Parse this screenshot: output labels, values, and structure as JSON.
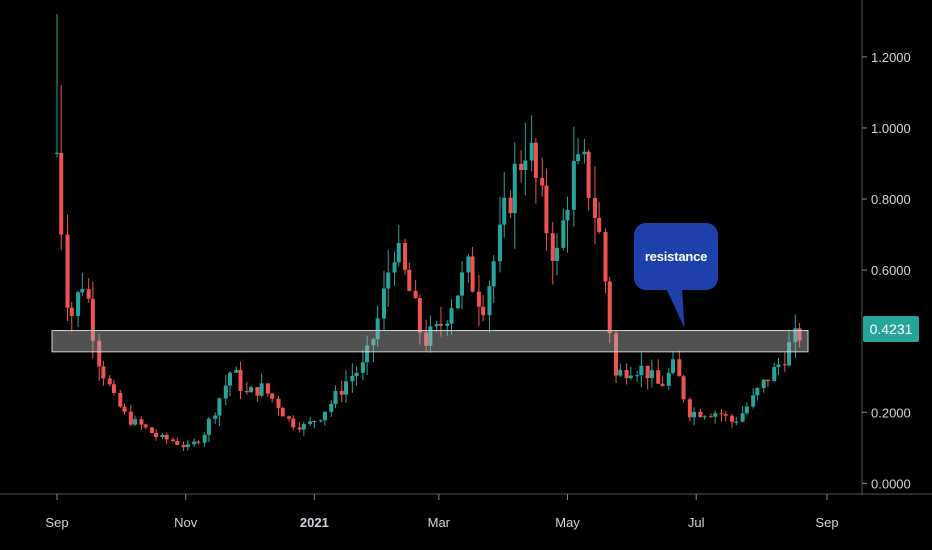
{
  "chart_data": {
    "type": "candlestick",
    "y_ticks": [
      "1.2000",
      "1.0000",
      "0.8000",
      "0.6000",
      "0.2000",
      "0.0000"
    ],
    "x_ticks": [
      "Sep",
      "Nov",
      "2021",
      "Mar",
      "May",
      "Jul",
      "Sep"
    ],
    "ylim": [
      -0.03,
      1.36
    ],
    "last_price": "0.4231",
    "grid": false,
    "up_color": "#26a69a",
    "down_color": "#ef5350",
    "resistance_zone": {
      "low": 0.37,
      "high": 0.43
    },
    "annotation": "resistance",
    "weekly_close_path": [
      [
        "2020-09-01",
        0.93
      ],
      [
        "2020-09-07",
        0.45
      ],
      [
        "2020-09-14",
        0.58
      ],
      [
        "2020-09-21",
        0.35
      ],
      [
        "2020-09-28",
        0.24
      ],
      [
        "2020-10-05",
        0.18
      ],
      [
        "2020-10-12",
        0.16
      ],
      [
        "2020-10-19",
        0.13
      ],
      [
        "2020-10-26",
        0.12
      ],
      [
        "2020-11-02",
        0.1
      ],
      [
        "2020-11-09",
        0.13
      ],
      [
        "2020-11-16",
        0.22
      ],
      [
        "2020-11-23",
        0.32
      ],
      [
        "2020-11-30",
        0.25
      ],
      [
        "2020-12-07",
        0.27
      ],
      [
        "2020-12-14",
        0.23
      ],
      [
        "2020-12-21",
        0.17
      ],
      [
        "2020-12-28",
        0.16
      ],
      [
        "2021-01-04",
        0.19
      ],
      [
        "2021-01-11",
        0.24
      ],
      [
        "2021-01-18",
        0.3
      ],
      [
        "2021-01-25",
        0.33
      ],
      [
        "2021-02-01",
        0.47
      ],
      [
        "2021-02-08",
        0.67
      ],
      [
        "2021-02-15",
        0.55
      ],
      [
        "2021-02-22",
        0.4
      ],
      [
        "2021-03-01",
        0.43
      ],
      [
        "2021-03-08",
        0.52
      ],
      [
        "2021-03-15",
        0.6
      ],
      [
        "2021-03-22",
        0.5
      ],
      [
        "2021-03-29",
        0.66
      ],
      [
        "2021-04-05",
        0.84
      ],
      [
        "2021-04-12",
        0.97
      ],
      [
        "2021-04-19",
        0.78
      ],
      [
        "2021-04-26",
        0.62
      ],
      [
        "2021-05-03",
        0.87
      ],
      [
        "2021-05-10",
        0.88
      ],
      [
        "2021-05-17",
        0.68
      ],
      [
        "2021-05-24",
        0.3
      ],
      [
        "2021-05-31",
        0.33
      ],
      [
        "2021-06-07",
        0.32
      ],
      [
        "2021-06-14",
        0.27
      ],
      [
        "2021-06-21",
        0.33
      ],
      [
        "2021-06-28",
        0.2
      ],
      [
        "2021-07-05",
        0.2
      ],
      [
        "2021-07-12",
        0.2
      ],
      [
        "2021-07-19",
        0.17
      ],
      [
        "2021-07-26",
        0.22
      ],
      [
        "2021-08-02",
        0.28
      ],
      [
        "2021-08-09",
        0.33
      ],
      [
        "2021-08-16",
        0.4
      ],
      [
        "2021-08-20",
        0.4231
      ]
    ]
  }
}
